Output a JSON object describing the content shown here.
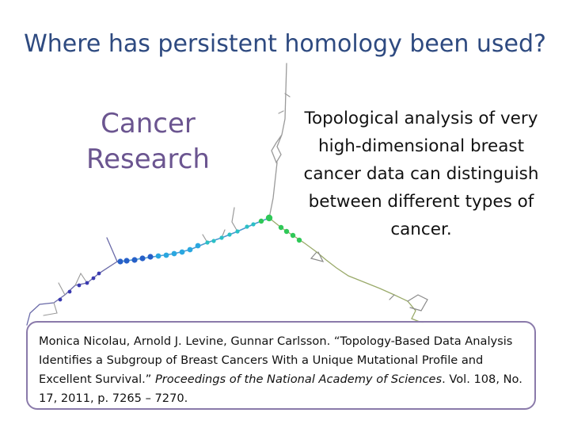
{
  "slide": {
    "title": "Where has persistent homology been used?",
    "topic_line1": "Cancer",
    "topic_line2": "Research",
    "description": "Topological analysis of very high-dimensional breast cancer data can distinguish between different types of cancer."
  },
  "citation": {
    "authors": "Monica Nicolau, Arnold J. Levine, Gunnar Carlsson. ",
    "article_title": "“Topology-Based Data Analysis Identifies a Subgroup of Breast Cancers With a Unique Mutational Profile and Excellent Survival.” ",
    "journal": "Proceedings of the National Academy of Sciences",
    "details": ". Vol. 108, No. 17, 2011, p. 7265 – 7270."
  },
  "colors": {
    "title": "#2e4a80",
    "topic": "#6b5590",
    "citation_border": "#8a7aaa"
  }
}
